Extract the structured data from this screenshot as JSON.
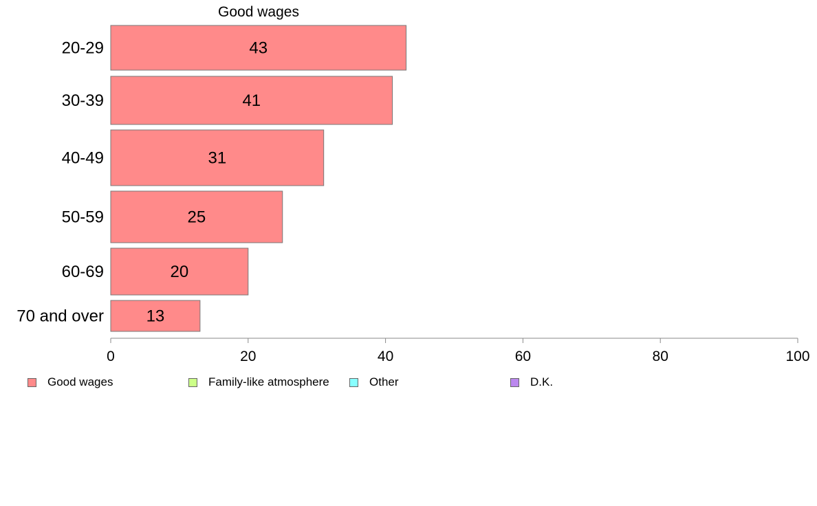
{
  "chart_data": {
    "type": "bar",
    "orientation": "horizontal",
    "title": "Good wages",
    "categories": [
      "20-29",
      "30-39",
      "40-49",
      "50-59",
      "60-69",
      "70 and over"
    ],
    "series": [
      {
        "name": "Good wages",
        "values": [
          43,
          41,
          31,
          25,
          20,
          13
        ],
        "color": "#ff8a8a"
      }
    ],
    "xlim": [
      0,
      100
    ],
    "xticks": [
      0,
      20,
      40,
      60,
      80,
      100
    ],
    "grid": false,
    "legend_position": "bottom"
  },
  "legend": {
    "items": [
      {
        "label": "Good wages",
        "color": "#ff8a8a"
      },
      {
        "label": "Family-like atmosphere",
        "color": "#ccff88"
      },
      {
        "label": "Other",
        "color": "#88ffff"
      },
      {
        "label": "D.K.",
        "color": "#bb88ee"
      }
    ]
  }
}
